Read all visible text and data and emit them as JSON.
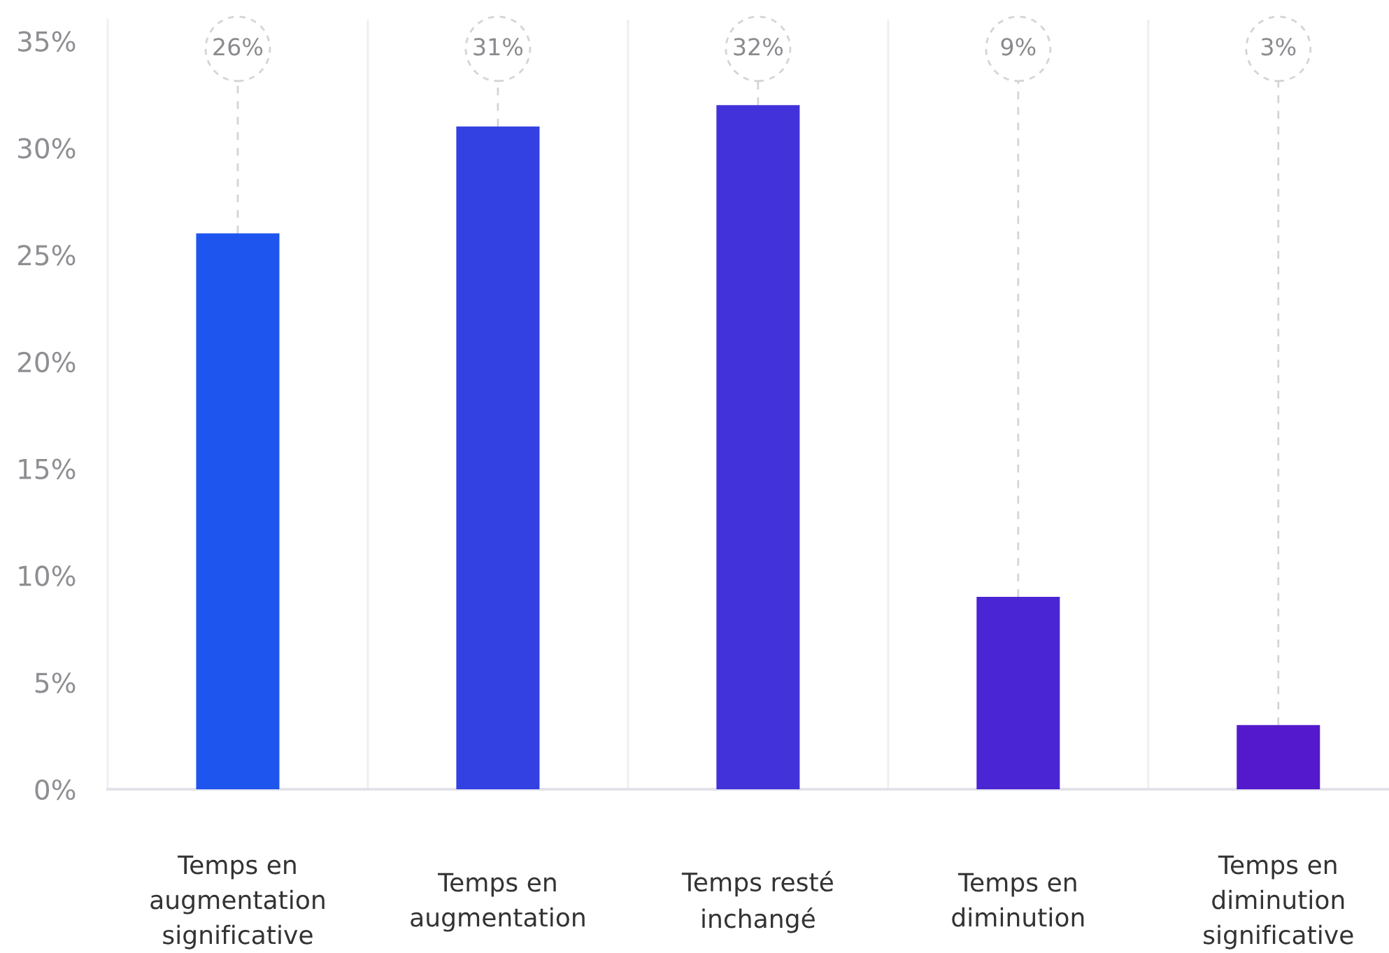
{
  "chart_data": {
    "type": "bar",
    "categories": [
      "Temps en\naugmentation\nsignificative",
      "Temps en\naugmentation",
      "Temps resté\ninchangé",
      "Temps en\ndiminution",
      "Temps en\ndiminution\nsignificative"
    ],
    "values": [
      26,
      31,
      32,
      9,
      3
    ],
    "colors": [
      "#1e55ee",
      "#3340e2",
      "#4232da",
      "#4a25d4",
      "#5419cc"
    ],
    "value_labels": [
      "26%",
      "31%",
      "32%",
      "9%",
      "3%"
    ],
    "ylim": [
      0,
      36
    ],
    "yticks": [
      {
        "value": 0,
        "label": "0%"
      },
      {
        "value": 5,
        "label": "5%"
      },
      {
        "value": 10,
        "label": "10%"
      },
      {
        "value": 15,
        "label": "15%"
      },
      {
        "value": 20,
        "label": "20%"
      },
      {
        "value": 25,
        "label": "25%"
      },
      {
        "value": 30,
        "label": "30%"
      },
      {
        "value": 35,
        "label": "35%"
      }
    ],
    "grid": "x"
  }
}
